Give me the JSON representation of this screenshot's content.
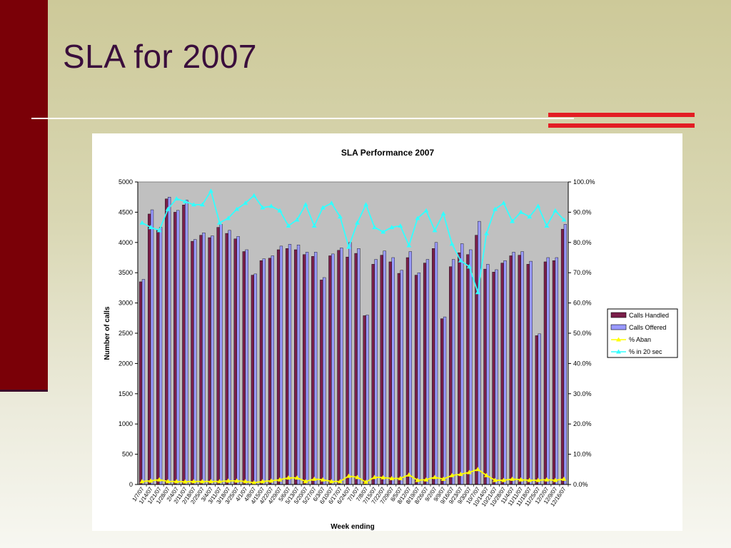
{
  "slide": {
    "title": "SLA for 2007"
  },
  "colors": {
    "side_bar": "#7a0007",
    "accent": "#e31d24",
    "title_text": "#3a0e3c",
    "plot_background": "#c0c0c0",
    "calls_handled": "#7a1f4a",
    "calls_offered": "#9999ff",
    "pct_aban": "#ffff00",
    "pct_in_20_sec": "#33ffff"
  },
  "chart_data": {
    "type": "bar",
    "title": "SLA Performance 2007",
    "xlabel": "Week ending",
    "ylabel": "Number of calls",
    "ylim": [
      0,
      5000
    ],
    "y2lim": [
      0,
      100
    ],
    "yticks": [
      "0",
      "500",
      "1000",
      "1500",
      "2000",
      "2500",
      "3000",
      "3500",
      "4000",
      "4500",
      "5000"
    ],
    "y2ticks": [
      "0.0%",
      "10.0%",
      "20.0%",
      "30.0%",
      "40.0%",
      "50.0%",
      "60.0%",
      "70.0%",
      "80.0%",
      "90.0%",
      "100.0%"
    ],
    "grid": false,
    "legend_position": "right",
    "categories": [
      "1/7/07",
      "1/14/07",
      "1/21/07",
      "1/28/07",
      "2/4/07",
      "2/11/07",
      "2/18/07",
      "2/25/07",
      "3/4/07",
      "3/11/07",
      "3/18/07",
      "3/25/07",
      "4/1/07",
      "4/8/07",
      "4/15/07",
      "4/22/07",
      "4/29/07",
      "5/6/07",
      "5/13/07",
      "5/20/07",
      "5/27/07",
      "6/3/07",
      "6/10/07",
      "6/17/07",
      "6/24/07",
      "7/1/07",
      "7/8/07",
      "7/15/07",
      "7/22/07",
      "7/29/07",
      "8/5/07",
      "8/12/07",
      "8/19/07",
      "8/26/07",
      "9/2/07",
      "9/9/07",
      "9/16/07",
      "9/23/07",
      "9/30/07",
      "10/7/07",
      "10/14/07",
      "10/21/07",
      "10/28/07",
      "11/4/07",
      "11/11/07",
      "11/18/07",
      "11/25/07",
      "12/2/07",
      "12/9/07",
      "12/16/07"
    ],
    "series": [
      {
        "name": "Calls Handled",
        "axis": "left",
        "kind": "bar",
        "values": [
          3350,
          4470,
          4200,
          4720,
          4500,
          4620,
          4020,
          4120,
          4080,
          4250,
          4150,
          4060,
          3850,
          3460,
          3700,
          3740,
          3880,
          3900,
          3880,
          3800,
          3770,
          3380,
          3780,
          3870,
          3760,
          3820,
          2790,
          3640,
          3790,
          3680,
          3490,
          3750,
          3460,
          3660,
          3900,
          2740,
          3600,
          3830,
          3800,
          4120,
          3560,
          3510,
          3660,
          3780,
          3790,
          3640,
          2460,
          3680,
          3700,
          4220
        ]
      },
      {
        "name": "Calls Offered",
        "axis": "left",
        "kind": "bar",
        "values": [
          3390,
          4540,
          4250,
          4750,
          4530,
          4700,
          4050,
          4160,
          4110,
          4300,
          4200,
          4100,
          3880,
          3480,
          3730,
          3780,
          3940,
          3970,
          3960,
          3840,
          3840,
          3420,
          3810,
          3910,
          4000,
          3900,
          2800,
          3720,
          3860,
          3750,
          3540,
          3850,
          3500,
          3720,
          4000,
          2770,
          3720,
          3980,
          3880,
          4350,
          3640,
          3550,
          3700,
          3840,
          3850,
          3690,
          2490,
          3750,
          3750,
          4300
        ]
      },
      {
        "name": "% Aban",
        "axis": "right",
        "kind": "line",
        "values": [
          1.0,
          1.2,
          1.6,
          1.0,
          1.0,
          0.9,
          1.0,
          1.0,
          1.0,
          1.0,
          1.2,
          1.2,
          1.0,
          0.6,
          1.0,
          1.2,
          1.6,
          2.2,
          2.2,
          1.0,
          1.8,
          1.6,
          1.0,
          1.0,
          2.8,
          2.4,
          0.8,
          2.4,
          2.3,
          2.0,
          2.0,
          3.2,
          1.4,
          1.6,
          2.4,
          1.8,
          3.0,
          3.4,
          4.0,
          5.0,
          3.0,
          1.4,
          1.4,
          1.8,
          1.6,
          1.4,
          1.4,
          1.6,
          1.4,
          1.8
        ]
      },
      {
        "name": "% in 20 sec",
        "axis": "right",
        "kind": "line",
        "values": [
          86.5,
          85.0,
          84.0,
          91.0,
          94.5,
          93.5,
          92.5,
          92.5,
          97.0,
          86.5,
          88.0,
          91.0,
          93.0,
          95.5,
          91.5,
          92.0,
          90.5,
          85.5,
          87.5,
          92.5,
          85.5,
          91.5,
          93.0,
          88.5,
          78.5,
          86.5,
          92.5,
          85.0,
          83.5,
          85.0,
          85.5,
          79.0,
          88.0,
          90.5,
          84.0,
          89.5,
          79.5,
          74.0,
          72.0,
          63.5,
          83.0,
          91.0,
          93.0,
          87.0,
          90.0,
          88.5,
          92.0,
          85.5,
          90.5,
          87.5
        ]
      }
    ]
  }
}
